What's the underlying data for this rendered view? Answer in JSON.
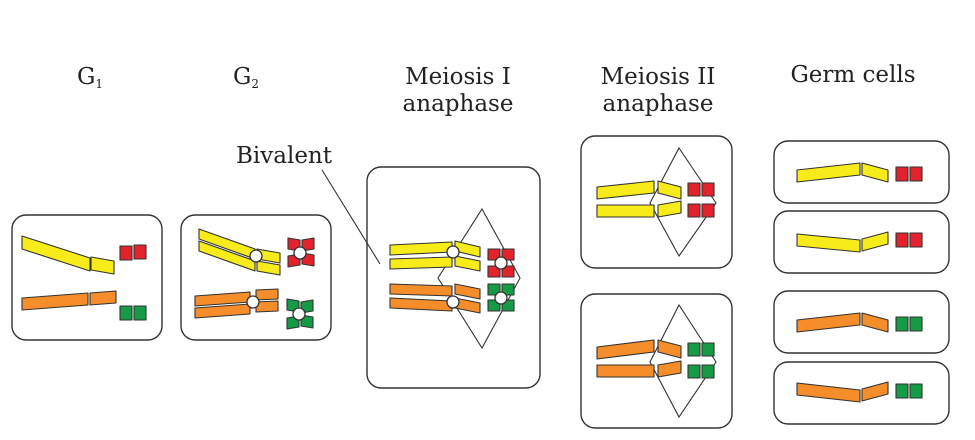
{
  "stages": {
    "g1": {
      "letter": "G",
      "subscript": "1"
    },
    "g2": {
      "letter": "G",
      "subscript": "2"
    },
    "meiosis1": {
      "line1": "Meiosis I",
      "line2": "anaphase"
    },
    "meiosis2": {
      "line1": "Meiosis II",
      "line2": "anaphase"
    },
    "germ": {
      "line1": "Germ cells"
    }
  },
  "annotation": {
    "bivalent": "Bivalent"
  },
  "colors": {
    "yellow": "#f7ec1a",
    "orange": "#f48d2a",
    "red": "#e3232b",
    "green": "#159a45",
    "outline": "#333333"
  }
}
